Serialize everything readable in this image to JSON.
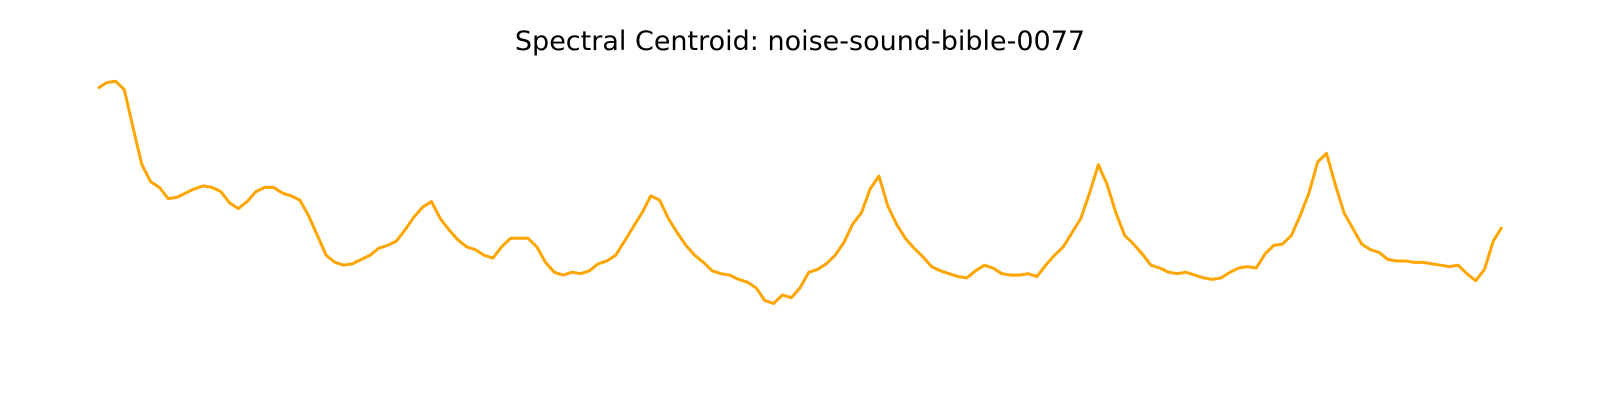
{
  "chart_data": {
    "type": "line",
    "title": "Spectral Centroid: noise-sound-bible-0077",
    "xlabel": "",
    "ylabel": "",
    "axes_visible": false,
    "grid": false,
    "legend": false,
    "color": "#FFA500",
    "x": [
      0,
      1,
      2,
      3,
      4,
      5,
      6,
      7,
      8,
      9,
      10,
      11,
      12,
      13,
      14,
      15,
      16,
      17,
      18,
      19,
      20,
      21,
      22,
      23,
      24,
      25,
      26,
      27,
      28,
      29,
      30,
      31,
      32,
      33,
      34,
      35,
      36,
      37,
      38,
      39,
      40,
      41,
      42,
      43,
      44,
      45,
      46,
      47,
      48,
      49,
      50,
      51,
      52,
      53,
      54,
      55,
      56,
      57,
      58,
      59,
      60,
      61,
      62,
      63,
      64,
      65,
      66,
      67,
      68,
      69,
      70,
      71,
      72,
      73,
      74,
      75,
      76,
      77,
      78,
      79,
      80,
      81,
      82,
      83,
      84,
      85,
      86,
      87,
      88,
      89,
      90,
      91,
      92,
      93,
      94,
      95,
      96,
      97,
      98,
      99,
      100,
      101,
      102,
      103,
      104,
      105,
      106,
      107,
      108,
      109,
      110,
      111,
      112,
      113,
      114,
      115,
      116,
      117,
      118,
      119,
      120,
      121,
      122,
      123,
      124,
      125,
      126,
      127,
      128,
      129,
      130,
      131,
      132,
      133,
      134,
      135,
      136,
      137,
      138,
      139,
      140,
      141,
      142,
      143,
      144,
      145,
      146,
      147,
      148,
      149,
      150,
      151,
      152,
      153,
      154,
      155,
      156,
      157,
      158,
      159,
      160
    ],
    "series": [
      {
        "values": [
          0.96,
          0.98,
          0.985,
          0.955,
          0.82,
          0.69,
          0.63,
          0.61,
          0.57,
          0.575,
          0.59,
          0.605,
          0.615,
          0.61,
          0.595,
          0.555,
          0.535,
          0.56,
          0.595,
          0.61,
          0.61,
          0.59,
          0.58,
          0.565,
          0.51,
          0.44,
          0.37,
          0.345,
          0.335,
          0.34,
          0.355,
          0.37,
          0.395,
          0.405,
          0.42,
          0.46,
          0.505,
          0.54,
          0.56,
          0.5,
          0.46,
          0.425,
          0.4,
          0.39,
          0.37,
          0.36,
          0.4,
          0.43,
          0.43,
          0.43,
          0.4,
          0.345,
          0.31,
          0.3,
          0.31,
          0.305,
          0.315,
          0.34,
          0.35,
          0.37,
          0.42,
          0.47,
          0.52,
          0.58,
          0.565,
          0.5,
          0.45,
          0.405,
          0.37,
          0.345,
          0.315,
          0.305,
          0.3,
          0.285,
          0.275,
          0.255,
          0.21,
          0.2,
          0.23,
          0.22,
          0.255,
          0.31,
          0.32,
          0.34,
          0.37,
          0.415,
          0.48,
          0.52,
          0.605,
          0.65,
          0.545,
          0.48,
          0.43,
          0.395,
          0.365,
          0.33,
          0.315,
          0.305,
          0.295,
          0.29,
          0.315,
          0.335,
          0.325,
          0.305,
          0.3,
          0.3,
          0.305,
          0.295,
          0.335,
          0.37,
          0.4,
          0.45,
          0.5,
          0.59,
          0.69,
          0.62,
          0.52,
          0.44,
          0.41,
          0.375,
          0.335,
          0.325,
          0.31,
          0.305,
          0.31,
          0.3,
          0.29,
          0.285,
          0.29,
          0.31,
          0.325,
          0.33,
          0.325,
          0.375,
          0.405,
          0.41,
          0.44,
          0.51,
          0.59,
          0.7,
          0.73,
          0.62,
          0.52,
          0.465,
          0.41,
          0.39,
          0.38,
          0.355,
          0.35,
          0.35,
          0.345,
          0.345,
          0.34,
          0.335,
          0.33,
          0.335,
          0.305,
          0.28,
          0.32,
          0.42,
          0.47
        ]
      }
    ]
  }
}
